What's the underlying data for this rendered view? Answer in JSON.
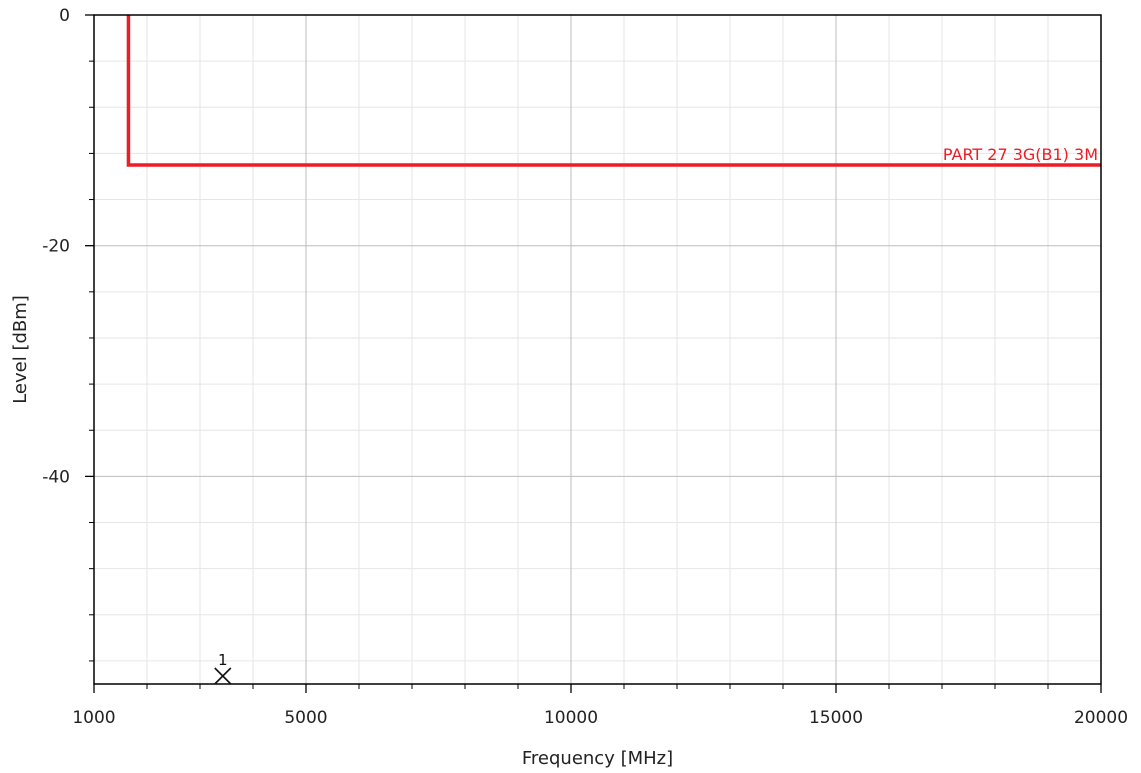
{
  "chart_data": {
    "type": "line",
    "xlabel": "Frequency [MHz]",
    "ylabel": "Level [dBm]",
    "xlim": [
      1000,
      20000
    ],
    "ylim": [
      -58,
      0
    ],
    "x_ticks": [
      1000,
      5000,
      10000,
      15000,
      20000
    ],
    "x_tick_labels": [
      "1000",
      "5000",
      "10000",
      "15000",
      "20000"
    ],
    "x_minor_step": 1000,
    "y_ticks": [
      0,
      -20,
      -40
    ],
    "y_tick_labels": [
      "0",
      "-20",
      "-40"
    ],
    "y_minor_step": 4,
    "grid": true,
    "series": [
      {
        "color": "#ee1c25",
        "points": [
          [
            1650,
            0
          ],
          [
            1650,
            -13
          ],
          [
            20000,
            -13
          ]
        ]
      }
    ],
    "annotations": [
      {
        "text": "PART 27 3G(B1) 3M",
        "x": 20000,
        "y": -13,
        "color": "#ee1c25"
      }
    ],
    "markers": [
      {
        "label": "1",
        "x": 3430,
        "y": -58
      }
    ]
  }
}
